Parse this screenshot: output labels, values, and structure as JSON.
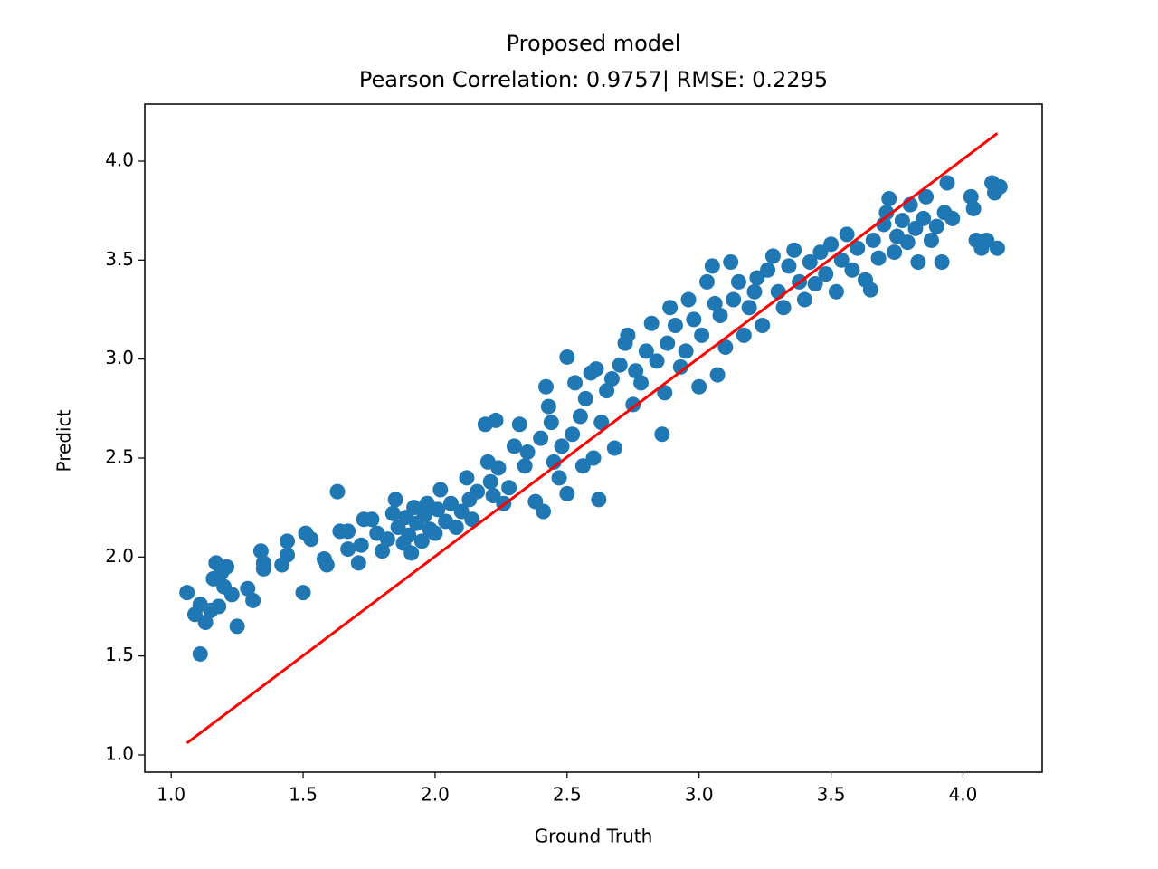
{
  "chart_data": {
    "type": "scatter",
    "title": [
      "Proposed model",
      "Pearson Correlation: 0.9757| RMSE: 0.2295"
    ],
    "x_label": "Ground Truth",
    "y_label": "Predict",
    "xlim": [
      0.9,
      4.3
    ],
    "ylim": [
      0.913,
      4.288
    ],
    "xticks": [
      {
        "value": 1,
        "label": "1.0"
      },
      1.5,
      {
        "value": 2,
        "label": "2.0"
      },
      2.5,
      {
        "value": 3,
        "label": "3.0"
      },
      3.5,
      {
        "value": 4,
        "label": "4.0"
      }
    ],
    "yticks": [
      {
        "value": 1,
        "label": "1.0"
      },
      1.5,
      {
        "value": 2,
        "label": "2.0"
      },
      2.5,
      {
        "value": 3,
        "label": "3.0"
      },
      3.5,
      {
        "value": 4,
        "label": "4.0"
      }
    ],
    "points": {
      "color": "#1f77b4",
      "x": [
        1.06,
        1.09,
        1.11,
        1.11,
        1.13,
        1.15,
        1.16,
        1.17,
        1.18,
        1.19,
        1.2,
        1.21,
        1.23,
        1.25,
        1.29,
        1.31,
        1.34,
        1.35,
        1.35,
        1.42,
        1.44,
        1.44,
        1.5,
        1.51,
        1.53,
        1.58,
        1.59,
        1.63,
        1.64,
        1.67,
        1.67,
        1.71,
        1.72,
        1.73,
        1.76,
        1.78,
        1.8,
        1.82,
        1.84,
        1.85,
        1.86,
        1.88,
        1.89,
        1.9,
        1.91,
        1.92,
        1.93,
        1.95,
        1.96,
        1.97,
        1.98,
        2.0,
        2.01,
        2.02,
        2.04,
        2.06,
        2.08,
        2.1,
        2.12,
        2.13,
        2.14,
        2.16,
        2.19,
        2.2,
        2.21,
        2.22,
        2.23,
        2.24,
        2.26,
        2.28,
        2.3,
        2.32,
        2.34,
        2.35,
        2.38,
        2.4,
        2.41,
        2.42,
        2.43,
        2.44,
        2.45,
        2.47,
        2.48,
        2.5,
        2.5,
        2.52,
        2.53,
        2.55,
        2.56,
        2.57,
        2.59,
        2.6,
        2.61,
        2.62,
        2.63,
        2.65,
        2.67,
        2.68,
        2.7,
        2.72,
        2.73,
        2.75,
        2.76,
        2.78,
        2.8,
        2.82,
        2.84,
        2.86,
        2.87,
        2.88,
        2.89,
        2.91,
        2.93,
        2.95,
        2.96,
        2.98,
        3.0,
        3.01,
        3.03,
        3.05,
        3.06,
        3.07,
        3.08,
        3.1,
        3.12,
        3.13,
        3.15,
        3.17,
        3.19,
        3.21,
        3.22,
        3.24,
        3.26,
        3.28,
        3.3,
        3.32,
        3.34,
        3.36,
        3.38,
        3.4,
        3.42,
        3.44,
        3.46,
        3.48,
        3.5,
        3.52,
        3.54,
        3.56,
        3.58,
        3.6,
        3.63,
        3.65,
        3.66,
        3.68,
        3.7,
        3.71,
        3.72,
        3.74,
        3.75,
        3.77,
        3.79,
        3.8,
        3.82,
        3.83,
        3.85,
        3.86,
        3.88,
        3.9,
        3.92,
        3.93,
        3.94,
        3.96,
        4.03,
        4.04,
        4.05,
        4.07,
        4.09,
        4.11,
        4.12,
        4.13,
        4.14
      ],
      "y": [
        1.82,
        1.71,
        1.76,
        1.51,
        1.67,
        1.73,
        1.89,
        1.97,
        1.75,
        1.92,
        1.85,
        1.95,
        1.81,
        1.65,
        1.84,
        1.78,
        2.03,
        1.97,
        1.94,
        1.96,
        2.01,
        2.08,
        1.82,
        2.12,
        2.09,
        1.99,
        1.96,
        2.33,
        2.13,
        2.04,
        2.13,
        1.97,
        2.06,
        2.19,
        2.19,
        2.12,
        2.03,
        2.09,
        2.22,
        2.29,
        2.15,
        2.07,
        2.2,
        2.11,
        2.02,
        2.25,
        2.17,
        2.08,
        2.21,
        2.27,
        2.14,
        2.12,
        2.24,
        2.34,
        2.18,
        2.27,
        2.15,
        2.23,
        2.4,
        2.29,
        2.19,
        2.33,
        2.67,
        2.48,
        2.38,
        2.31,
        2.69,
        2.45,
        2.27,
        2.35,
        2.56,
        2.67,
        2.46,
        2.53,
        2.28,
        2.6,
        2.23,
        2.86,
        2.76,
        2.68,
        2.48,
        2.4,
        2.56,
        2.32,
        3.01,
        2.62,
        2.88,
        2.71,
        2.46,
        2.8,
        2.93,
        2.5,
        2.95,
        2.29,
        2.68,
        2.84,
        2.9,
        2.55,
        2.97,
        3.08,
        3.12,
        2.77,
        2.94,
        2.88,
        3.04,
        3.18,
        2.99,
        2.62,
        2.83,
        3.08,
        3.26,
        3.17,
        2.96,
        3.04,
        3.3,
        3.2,
        2.86,
        3.12,
        3.39,
        3.47,
        3.28,
        2.92,
        3.22,
        3.06,
        3.49,
        3.3,
        3.39,
        3.12,
        3.26,
        3.34,
        3.41,
        3.17,
        3.45,
        3.52,
        3.34,
        3.26,
        3.47,
        3.55,
        3.39,
        3.3,
        3.49,
        3.38,
        3.54,
        3.43,
        3.58,
        3.34,
        3.5,
        3.63,
        3.45,
        3.56,
        3.4,
        3.35,
        3.6,
        3.51,
        3.68,
        3.74,
        3.81,
        3.54,
        3.62,
        3.7,
        3.59,
        3.78,
        3.66,
        3.49,
        3.71,
        3.82,
        3.6,
        3.67,
        3.49,
        3.74,
        3.89,
        3.71,
        3.82,
        3.76,
        3.6,
        3.56,
        3.6,
        3.89,
        3.84,
        3.56,
        3.87
      ]
    },
    "fit_line": {
      "color": "#ff0000",
      "x": [
        1.06,
        4.13
      ],
      "y": [
        1.06,
        4.14
      ]
    }
  }
}
